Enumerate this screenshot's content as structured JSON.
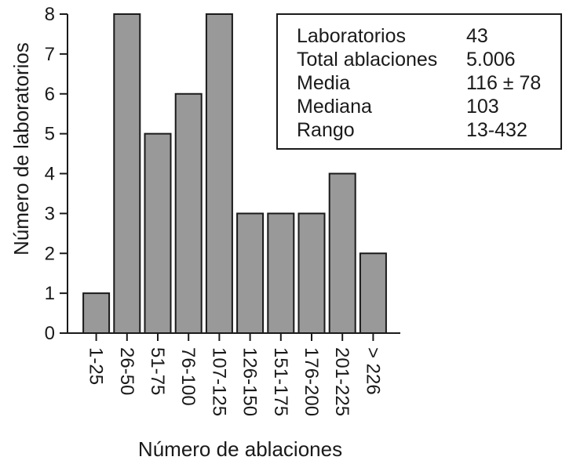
{
  "chart_data": {
    "type": "bar",
    "title": "",
    "xlabel": "Número de ablaciones",
    "ylabel": "Número de laboratorios",
    "categories": [
      "1-25",
      "26-50",
      "51-75",
      "76-100",
      "107-125",
      "126-150",
      "151-175",
      "176-200",
      "201-225",
      "> 226"
    ],
    "values": [
      1,
      8,
      5,
      6,
      8,
      3,
      3,
      3,
      4,
      2
    ],
    "ylim": [
      0,
      8
    ],
    "yticks": [
      "0",
      "1",
      "2",
      "3",
      "4",
      "5",
      "6",
      "7",
      "8"
    ],
    "grid": false,
    "bar_color": "#999999",
    "stats_box": [
      {
        "label": "Laboratorios",
        "value": "43"
      },
      {
        "label": "Total ablaciones",
        "value": "5.006"
      },
      {
        "label": "Media",
        "value": "116 ± 78"
      },
      {
        "label": "Mediana",
        "value": "103"
      },
      {
        "label": "Rango",
        "value": "13-432"
      }
    ]
  }
}
